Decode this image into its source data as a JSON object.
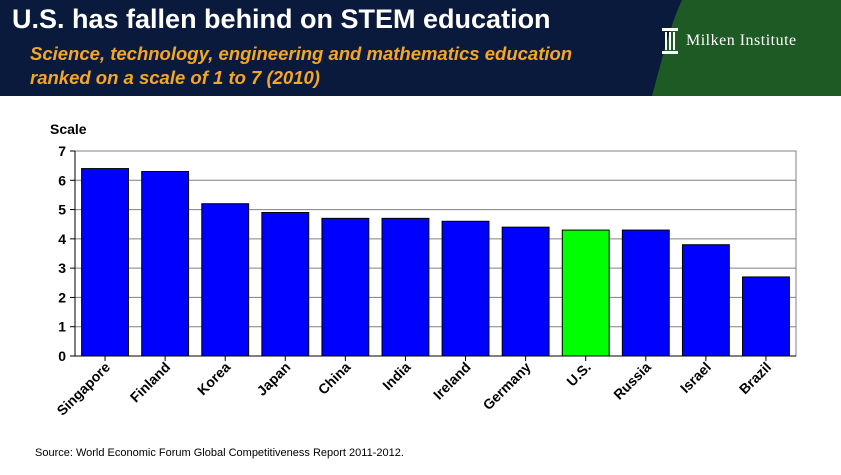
{
  "header": {
    "title": "U.S. has fallen behind on STEM education",
    "subtitle_line1": "Science, technology, engineering and mathematics education",
    "subtitle_line2": "ranked on a scale of 1 to 7 (2010)",
    "logo_text": "Milken Institute",
    "background_color": "#0a1a3c",
    "brand_color": "#1e5a23",
    "subtitle_color": "#f5a623"
  },
  "chart_data": {
    "type": "bar",
    "title": "",
    "ylabel": "Scale",
    "xlabel": "",
    "ylim": [
      0,
      7
    ],
    "yticks": [
      0,
      1,
      2,
      3,
      4,
      5,
      6,
      7
    ],
    "grid": true,
    "categories": [
      "Singapore",
      "Finland",
      "Korea",
      "Japan",
      "China",
      "India",
      "Ireland",
      "Germany",
      "U.S.",
      "Russia",
      "Israel",
      "Brazil"
    ],
    "values": [
      6.4,
      6.3,
      5.2,
      4.9,
      4.7,
      4.7,
      4.6,
      4.4,
      4.3,
      4.3,
      3.8,
      2.7
    ],
    "bar_color": "#0000ff",
    "highlight_category": "U.S.",
    "highlight_color": "#00ff00"
  },
  "footer": {
    "source": "Source: World Economic Forum Global Competitiveness Report 2011-2012."
  }
}
